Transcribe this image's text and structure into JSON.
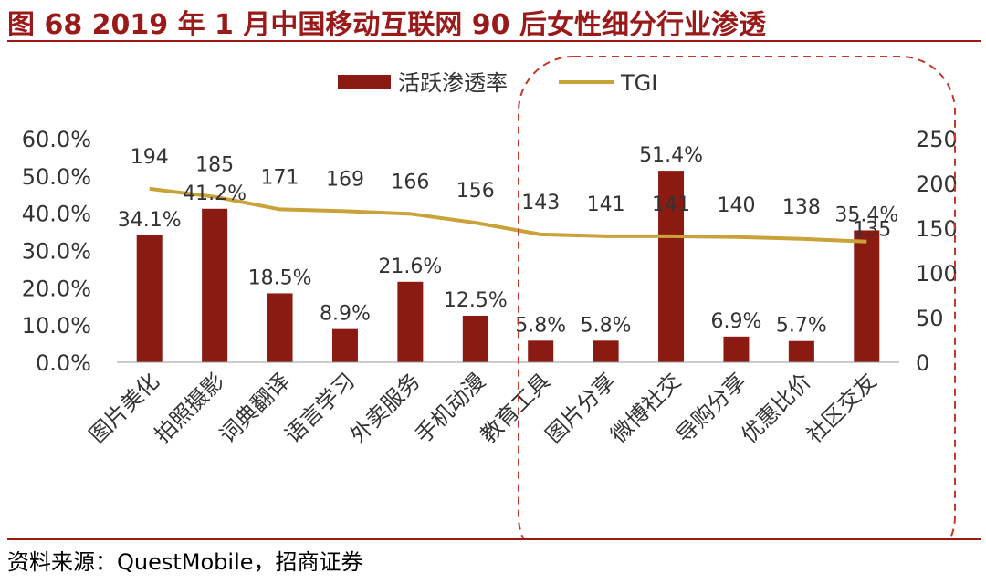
{
  "header": {
    "title": "图 68 2019 年 1 月中国移动互联网 90 后女性细分行业渗透"
  },
  "footer": {
    "source": "资料来源：QuestMobile，招商证券"
  },
  "colors": {
    "accent": "#9a1a1a",
    "bar": "#8b1a13",
    "line": "#c9a23a",
    "highlight_box": "#c0392b"
  },
  "chart_data": {
    "type": "bar",
    "categories": [
      "图片美化",
      "拍照摄影",
      "词典翻译",
      "语言学习",
      "外卖服务",
      "手机动漫",
      "教育工具",
      "图片分享",
      "微博社交",
      "导购分享",
      "优惠比价",
      "社区交友"
    ],
    "series": [
      {
        "name": "活跃渗透率",
        "type": "bar",
        "axis": "left",
        "values": [
          34.1,
          41.2,
          18.5,
          8.9,
          21.6,
          12.5,
          5.8,
          5.8,
          51.4,
          6.9,
          5.7,
          35.4
        ],
        "labels": [
          "34.1%",
          "41.2%",
          "18.5%",
          "8.9%",
          "21.6%",
          "12.5%",
          "5.8%",
          "5.8%",
          "51.4%",
          "6.9%",
          "5.7%",
          "35.4%"
        ]
      },
      {
        "name": "TGI",
        "type": "line",
        "axis": "right",
        "values": [
          194,
          185,
          171,
          169,
          166,
          156,
          143,
          141,
          141,
          140,
          138,
          135
        ]
      }
    ],
    "y_left": {
      "lim": [
        0,
        60
      ],
      "ticks": [
        "0.0%",
        "10.0%",
        "20.0%",
        "30.0%",
        "40.0%",
        "50.0%",
        "60.0%"
      ]
    },
    "y_right": {
      "lim": [
        0,
        250
      ],
      "ticks": [
        "0",
        "50",
        "100",
        "150",
        "200",
        "250"
      ]
    },
    "legend_position": "top",
    "grid": false,
    "highlight": {
      "style": "dashed-rounded-box",
      "from_category": "教育工具",
      "to_category": "社区交友"
    }
  }
}
